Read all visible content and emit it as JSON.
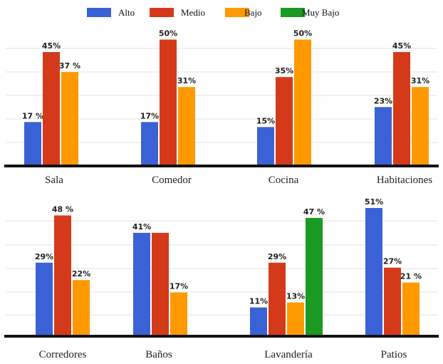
{
  "legend": [
    {
      "name": "Alto",
      "color": "#3a62d6"
    },
    {
      "name": "Medio",
      "color": "#d43a1a"
    },
    {
      "name": "Bajo",
      "color": "#ff9900"
    },
    {
      "name": "Muy Bajo",
      "color": "#1a9a22"
    }
  ],
  "chart_data": {
    "type": "bar",
    "legend_position": "top",
    "grid": true,
    "ylim": [
      0,
      55
    ],
    "panels": [
      {
        "categories": [
          {
            "name": "Sala",
            "bars": [
              {
                "series": "Alto",
                "value": 17,
                "label": "17 %"
              },
              {
                "series": "Medio",
                "value": 45,
                "label": "45%"
              },
              {
                "series": "Bajo",
                "value": 37,
                "label": "37 %"
              }
            ]
          },
          {
            "name": "Comedor",
            "bars": [
              {
                "series": "Alto",
                "value": 17,
                "label": "17%"
              },
              {
                "series": "Medio",
                "value": 50,
                "label": "50%"
              },
              {
                "series": "Bajo",
                "value": 31,
                "label": "31%"
              }
            ]
          },
          {
            "name": "Cocina",
            "bars": [
              {
                "series": "Alto",
                "value": 15,
                "label": "15%"
              },
              {
                "series": "Medio",
                "value": 35,
                "label": "35%"
              },
              {
                "series": "Bajo",
                "value": 50,
                "label": "50%"
              }
            ]
          },
          {
            "name": "Habitaciones",
            "bars": [
              {
                "series": "Alto",
                "value": 23,
                "label": "23%"
              },
              {
                "series": "Medio",
                "value": 45,
                "label": "45%"
              },
              {
                "series": "Bajo",
                "value": 31,
                "label": "31%"
              }
            ]
          }
        ]
      },
      {
        "categories": [
          {
            "name": "Corredores",
            "bars": [
              {
                "series": "Alto",
                "value": 29,
                "label": "29%"
              },
              {
                "series": "Medio",
                "value": 48,
                "label": "48 %"
              },
              {
                "series": "Bajo",
                "value": 22,
                "label": "22%"
              }
            ]
          },
          {
            "name": "Baños",
            "bars": [
              {
                "series": "Alto",
                "value": 41,
                "label": "41%"
              },
              {
                "series": "Medio",
                "value": 41,
                "label": ""
              },
              {
                "series": "Bajo",
                "value": 17,
                "label": "17%"
              }
            ]
          },
          {
            "name": "Lavandería",
            "bars": [
              {
                "series": "Alto",
                "value": 11,
                "label": "11%"
              },
              {
                "series": "Medio",
                "value": 29,
                "label": "29%"
              },
              {
                "series": "Bajo",
                "value": 13,
                "label": "13%"
              },
              {
                "series": "Muy Bajo",
                "value": 47,
                "label": "47 %"
              }
            ]
          },
          {
            "name": "Patios",
            "bars": [
              {
                "series": "Alto",
                "value": 51,
                "label": "51%"
              },
              {
                "series": "Medio",
                "value": 27,
                "label": "27%"
              },
              {
                "series": "Bajo",
                "value": 21,
                "label": "21 %"
              }
            ]
          }
        ]
      }
    ]
  }
}
